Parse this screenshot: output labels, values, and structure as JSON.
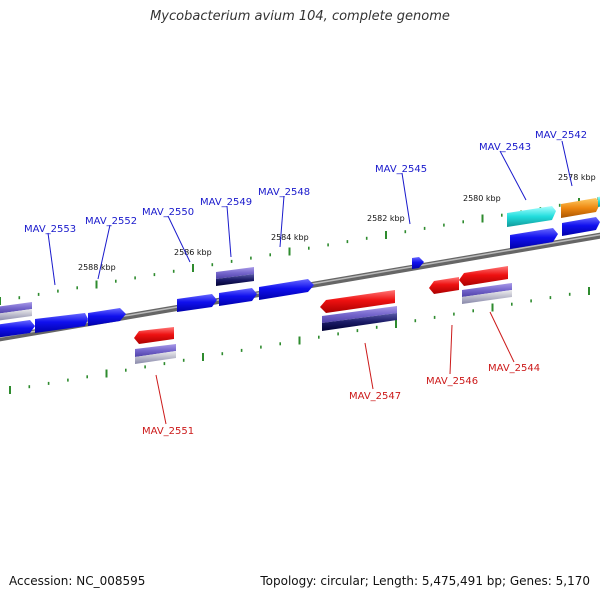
{
  "title": "Mycobacterium avium 104, complete genome",
  "footer": {
    "accession": "Accession: NC_008595",
    "summary": "Topology: circular; Length: 5,475,491 bp; Genes: 5,170"
  },
  "colors": {
    "backbone": "#888888",
    "tick": "#2e8b2e",
    "forward_label": "#1a1acc",
    "reverse_label": "#cc1a1a",
    "forward_gene": "#0a0aee",
    "reverse_gene": "#ee1111",
    "homolog": "#7a6ad0",
    "cyan_gene": "#22dddd",
    "orange_gene": "#ee8811"
  },
  "kbp_labels": [
    "2578 kbp",
    "2580 kbp",
    "2582 kbp",
    "2584 kbp",
    "2586 kbp",
    "2588 kbp"
  ],
  "forward_genes": [
    "MAV_2542",
    "MAV_2543",
    "MAV_2545",
    "MAV_2548",
    "MAV_2549",
    "MAV_2550",
    "MAV_2552",
    "MAV_2553"
  ],
  "reverse_genes": [
    "MAV_2544",
    "MAV_2546",
    "MAV_2547",
    "MAV_2551"
  ]
}
